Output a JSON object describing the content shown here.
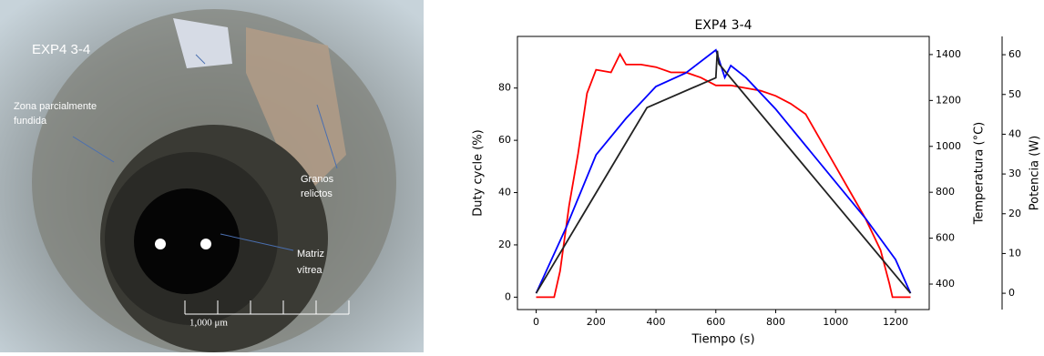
{
  "image": {
    "labels": [
      "EXP4 3-4",
      "Zona parcialmente",
      "fundida",
      "Granos",
      "relictos",
      "Matriz",
      "vítrea",
      "1,000 μm"
    ]
  },
  "chart_data": {
    "type": "line",
    "title": "EXP4 3-4",
    "x_label": "Tiempo (s)",
    "y_label": "Duty cycle (%)",
    "y2_label": "Temperatura (°C)",
    "y3_label": "Potencia (W)",
    "xlim": [
      -62.5,
      1312.5
    ],
    "xticks": [
      0,
      200,
      400,
      600,
      800,
      1000,
      1200
    ],
    "ylim": [
      -4.75,
      99.75
    ],
    "yticks": [
      0,
      20,
      40,
      60,
      80
    ],
    "y2lim": [
      289,
      1479
    ],
    "y2ticks": [
      400,
      600,
      800,
      1000,
      1200,
      1400
    ],
    "y3lim": [
      -4.1,
      64.6
    ],
    "y3ticks": [
      0,
      10,
      20,
      30,
      40,
      50,
      60
    ],
    "series": [
      {
        "color": "#ff0000",
        "axis": "y",
        "x": [
          0,
          60,
          80,
          110,
          140,
          170,
          200,
          250,
          280,
          300,
          350,
          400,
          450,
          500,
          550,
          600,
          650,
          700,
          750,
          800,
          850,
          900,
          950,
          1000,
          1050,
          1100,
          1150,
          1180,
          1190,
          1250
        ],
        "values": [
          0,
          0,
          10,
          35,
          55,
          78,
          87,
          86,
          93,
          89,
          89,
          88,
          86,
          86,
          84,
          81,
          81,
          80,
          79,
          77,
          74,
          70,
          60,
          50,
          40,
          30,
          18,
          5,
          0,
          0
        ]
      },
      {
        "color": "#0000ff",
        "axis": "y2",
        "x": [
          0,
          100,
          200,
          300,
          400,
          500,
          600,
          630,
          650,
          700,
          800,
          900,
          1000,
          1100,
          1200,
          1250
        ],
        "values": [
          360,
          646,
          963,
          1122,
          1261,
          1320,
          1420,
          1300,
          1352,
          1300,
          1162,
          1003,
          844,
          686,
          507,
          360
        ]
      },
      {
        "color": "#222222",
        "axis": "y3",
        "x": [
          0,
          370,
          600,
          605,
          610,
          1250
        ],
        "values": [
          0,
          46.7,
          54.2,
          61,
          57.7,
          0
        ]
      }
    ]
  }
}
